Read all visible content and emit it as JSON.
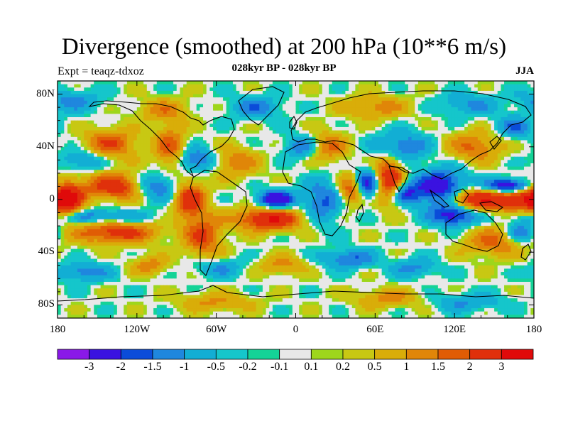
{
  "chart_data": {
    "type": "heatmap",
    "title": "Divergence (smoothed) at 200 hPa (10**6 m/s)",
    "subtitle": "028kyr BP - 028kyr BP",
    "left_label": "Expt = teaqz-tdxoz",
    "right_label": "JJA",
    "x_ticks": [
      {
        "value": -180,
        "label": "180"
      },
      {
        "value": -120,
        "label": "120W"
      },
      {
        "value": -60,
        "label": "60W"
      },
      {
        "value": 0,
        "label": "0"
      },
      {
        "value": 60,
        "label": "60E"
      },
      {
        "value": 120,
        "label": "120E"
      },
      {
        "value": 180,
        "label": "180"
      }
    ],
    "y_ticks": [
      {
        "value": 80,
        "label": "80N"
      },
      {
        "value": 40,
        "label": "40N"
      },
      {
        "value": 0,
        "label": "0"
      },
      {
        "value": -40,
        "label": "40S"
      },
      {
        "value": -80,
        "label": "80S"
      }
    ],
    "xlim": [
      -180,
      180
    ],
    "ylim": [
      -90,
      90
    ],
    "colorbar": {
      "labels": [
        "-3",
        "-2",
        "-1.5",
        "-1",
        "-0.5",
        "-0.2",
        "-0.1",
        "0.1",
        "0.2",
        "0.5",
        "1",
        "1.5",
        "2",
        "3"
      ],
      "colors": [
        "#8a19e8",
        "#3a12e0",
        "#0b4cd9",
        "#1f87de",
        "#12aed4",
        "#15c6cb",
        "#14d397",
        "#e8e8e8",
        "#9ed61c",
        "#c8c813",
        "#d9ad09",
        "#e08608",
        "#e05c05",
        "#e0300b",
        "#e00a0a"
      ]
    },
    "features": [
      {
        "lon": -128,
        "lat": 10,
        "amp": 3.2,
        "sx": 22,
        "sy": 7
      },
      {
        "lon": -108,
        "lat": 10,
        "amp": -3.3,
        "sx": 14,
        "sy": 7
      },
      {
        "lon": -173,
        "lat": 0,
        "amp": 3.0,
        "sx": 8,
        "sy": 9
      },
      {
        "lon": -136,
        "lat": -25,
        "amp": 2.4,
        "sx": 22,
        "sy": 6
      },
      {
        "lon": -150,
        "lat": -13,
        "amp": -1.4,
        "sx": 28,
        "sy": 4
      },
      {
        "lon": -80,
        "lat": 0,
        "amp": 2.6,
        "sx": 8,
        "sy": 10
      },
      {
        "lon": -70,
        "lat": -28,
        "amp": 2.0,
        "sx": 10,
        "sy": 12
      },
      {
        "lon": -20,
        "lat": -15,
        "amp": 3.0,
        "sx": 18,
        "sy": 6
      },
      {
        "lon": -15,
        "lat": 0,
        "amp": -2.8,
        "sx": 10,
        "sy": 5
      },
      {
        "lon": 20,
        "lat": -2,
        "amp": -1.6,
        "sx": 10,
        "sy": 12
      },
      {
        "lon": 42,
        "lat": 8,
        "amp": 2.2,
        "sx": 6,
        "sy": 8
      },
      {
        "lon": 55,
        "lat": 12,
        "amp": -2.5,
        "sx": 8,
        "sy": 8
      },
      {
        "lon": 70,
        "lat": 15,
        "amp": 3.2,
        "sx": 8,
        "sy": 12
      },
      {
        "lon": 82,
        "lat": 5,
        "amp": -2.0,
        "sx": 8,
        "sy": 6
      },
      {
        "lon": 110,
        "lat": 8,
        "amp": -2.8,
        "sx": 14,
        "sy": 10
      },
      {
        "lon": 130,
        "lat": 0,
        "amp": 2.8,
        "sx": 14,
        "sy": 6
      },
      {
        "lon": 165,
        "lat": 0,
        "amp": 3.0,
        "sx": 16,
        "sy": 6
      },
      {
        "lon": 160,
        "lat": 10,
        "amp": -3.2,
        "sx": 12,
        "sy": 4
      },
      {
        "lon": 120,
        "lat": -12,
        "amp": -2.4,
        "sx": 12,
        "sy": 6
      },
      {
        "lon": 170,
        "lat": -25,
        "amp": -1.8,
        "sx": 8,
        "sy": 6
      },
      {
        "lon": 150,
        "lat": -32,
        "amp": 1.6,
        "sx": 16,
        "sy": 8
      },
      {
        "lon": -140,
        "lat": 42,
        "amp": 2.0,
        "sx": 14,
        "sy": 8
      },
      {
        "lon": -160,
        "lat": 30,
        "amp": -1.3,
        "sx": 12,
        "sy": 6
      },
      {
        "lon": -95,
        "lat": 40,
        "amp": 1.8,
        "sx": 8,
        "sy": 12
      },
      {
        "lon": -75,
        "lat": 30,
        "amp": -1.8,
        "sx": 10,
        "sy": 6
      },
      {
        "lon": -45,
        "lat": 28,
        "amp": 1.4,
        "sx": 12,
        "sy": 8
      },
      {
        "lon": 5,
        "lat": 40,
        "amp": -1.4,
        "sx": 10,
        "sy": 6
      },
      {
        "lon": 25,
        "lat": 40,
        "amp": 1.6,
        "sx": 10,
        "sy": 8
      },
      {
        "lon": 80,
        "lat": 40,
        "amp": -1.6,
        "sx": 14,
        "sy": 8
      },
      {
        "lon": 135,
        "lat": 40,
        "amp": 1.6,
        "sx": 14,
        "sy": 8
      },
      {
        "lon": 165,
        "lat": 55,
        "amp": -1.4,
        "sx": 10,
        "sy": 6
      },
      {
        "lon": -170,
        "lat": 75,
        "amp": -1.2,
        "sx": 16,
        "sy": 6
      },
      {
        "lon": -100,
        "lat": 68,
        "amp": 1.2,
        "sx": 14,
        "sy": 6
      },
      {
        "lon": -30,
        "lat": 70,
        "amp": -1.3,
        "sx": 14,
        "sy": 6
      },
      {
        "lon": 60,
        "lat": 70,
        "amp": 1.3,
        "sx": 18,
        "sy": 6
      },
      {
        "lon": 130,
        "lat": 72,
        "amp": -1.1,
        "sx": 16,
        "sy": 6
      },
      {
        "lon": -160,
        "lat": -55,
        "amp": -1.4,
        "sx": 14,
        "sy": 5
      },
      {
        "lon": -110,
        "lat": -50,
        "amp": 1.3,
        "sx": 10,
        "sy": 5
      },
      {
        "lon": -60,
        "lat": -52,
        "amp": -1.1,
        "sx": 14,
        "sy": 5
      },
      {
        "lon": -10,
        "lat": -50,
        "amp": 1.2,
        "sx": 12,
        "sy": 5
      },
      {
        "lon": 40,
        "lat": -45,
        "amp": -1.6,
        "sx": 14,
        "sy": 5
      },
      {
        "lon": 90,
        "lat": -52,
        "amp": -1.2,
        "sx": 12,
        "sy": 5
      },
      {
        "lon": 70,
        "lat": -75,
        "amp": 1.2,
        "sx": 18,
        "sy": 5
      },
      {
        "lon": -60,
        "lat": -78,
        "amp": 1.1,
        "sx": 20,
        "sy": 5
      },
      {
        "lon": 130,
        "lat": -78,
        "amp": -1.0,
        "sx": 20,
        "sy": 5
      }
    ]
  }
}
